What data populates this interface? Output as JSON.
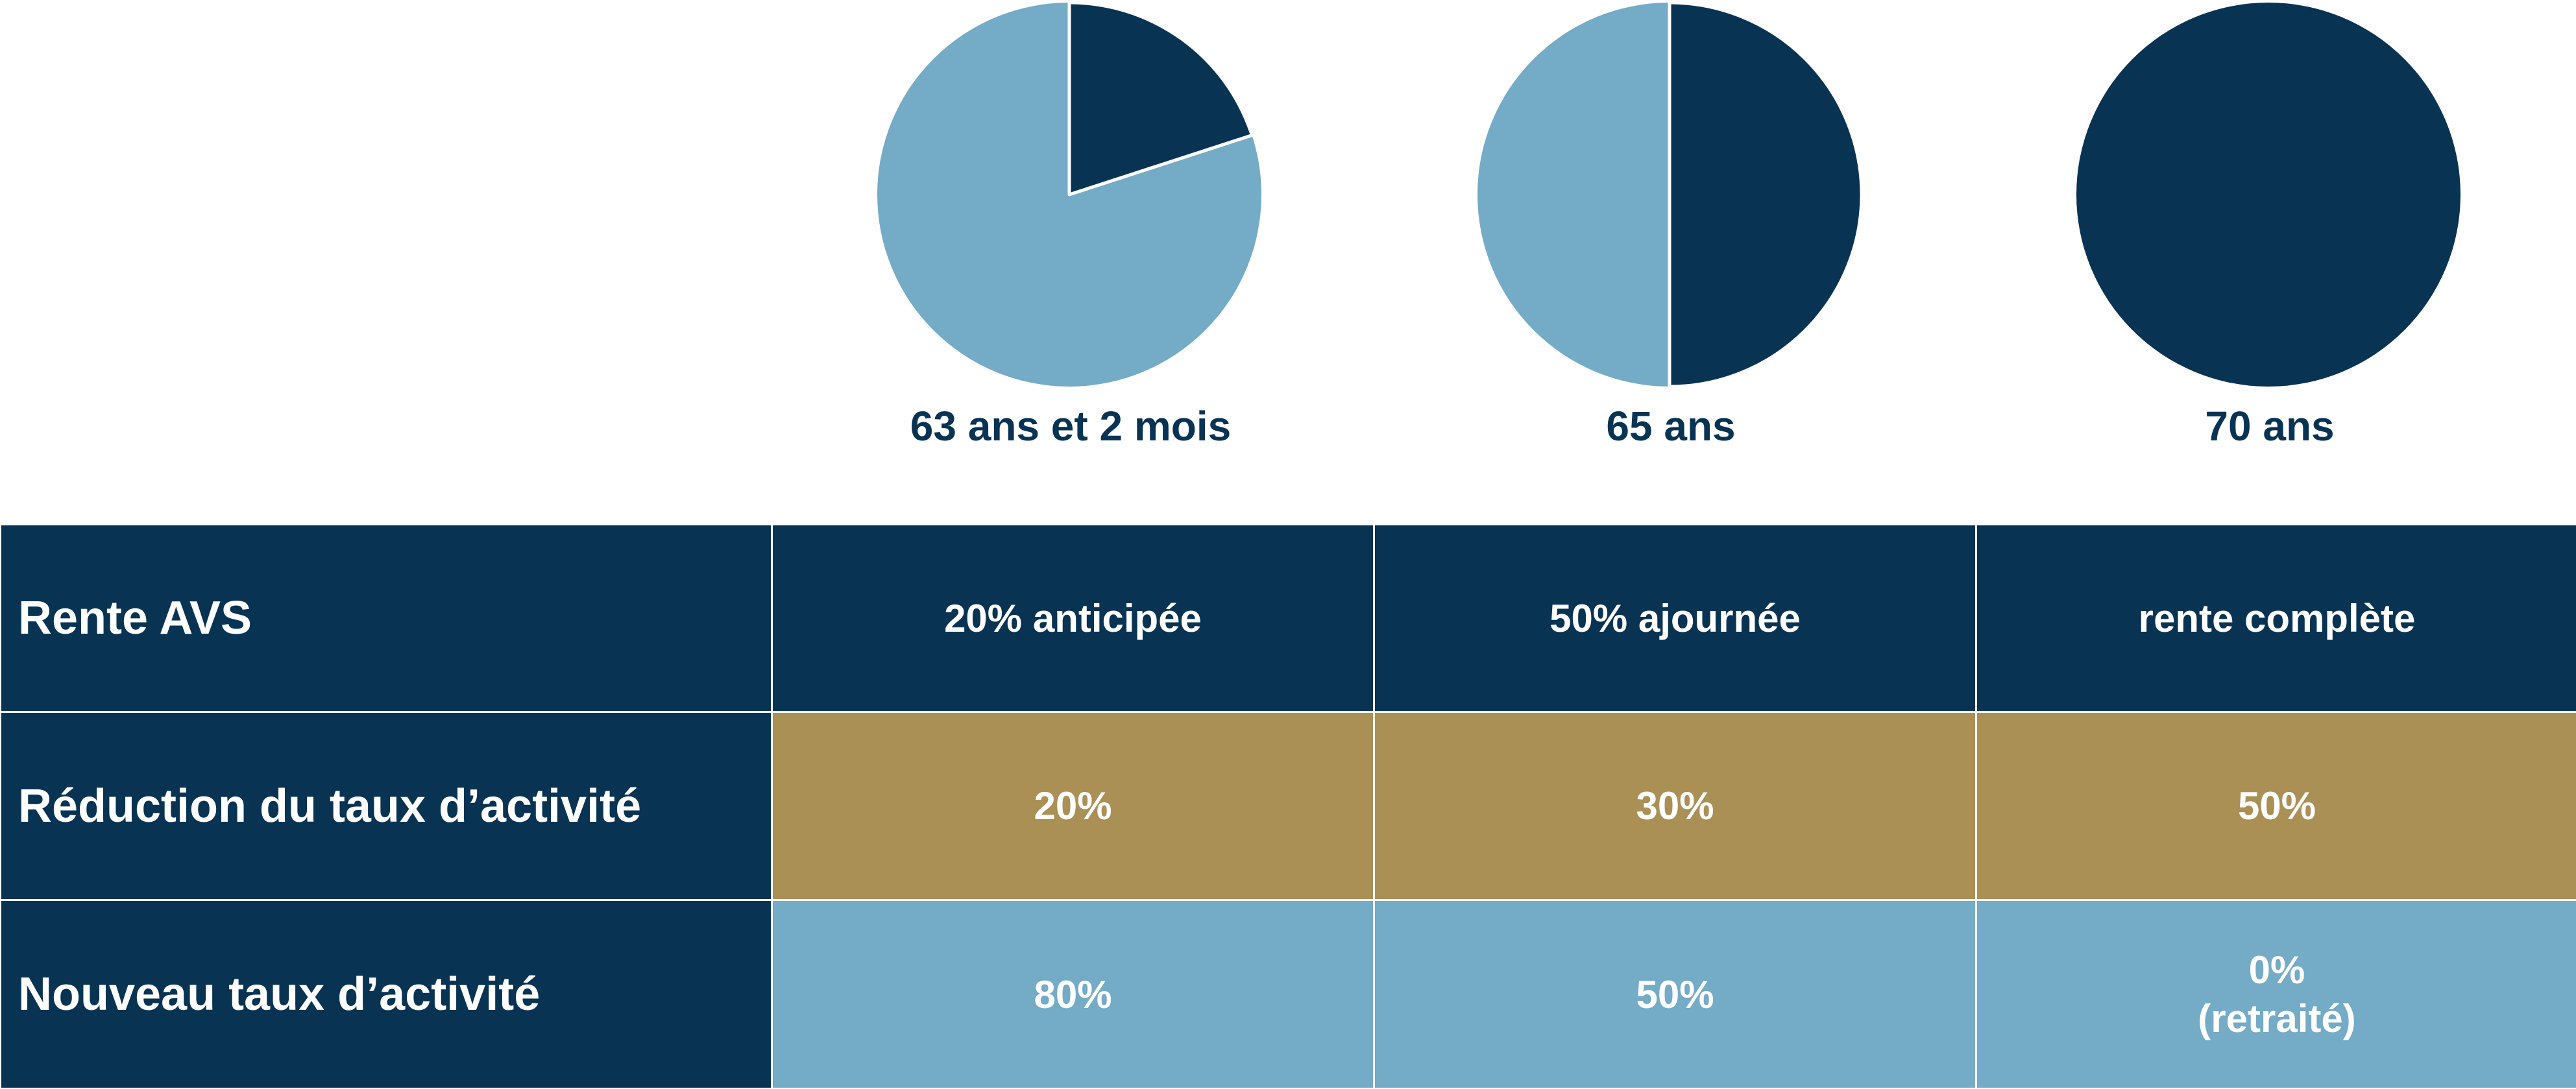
{
  "chart_data": {
    "type": "pie",
    "colors": {
      "share": "#083353",
      "remainder": "#74abc7"
    },
    "pies": [
      {
        "label": "63 ans et 2 mois",
        "value": 20
      },
      {
        "label": "65 ans",
        "value": 50
      },
      {
        "label": "70 ans",
        "value": 100
      }
    ]
  },
  "table": {
    "rows": [
      {
        "header": "Rente AVS",
        "cells": [
          "20% anticipée",
          "50% ajournée",
          "rente complète"
        ]
      },
      {
        "header": "Réduction du taux d’activité",
        "cells": [
          "20%",
          "30%",
          "50%"
        ]
      },
      {
        "header": "Nouveau taux d’activité",
        "cells": [
          "80%",
          "50%",
          "0%"
        ],
        "note": "(retraité)"
      }
    ]
  },
  "colors": {
    "navy": "#083353",
    "gold": "#ab9055",
    "light_blue": "#74abc7"
  }
}
